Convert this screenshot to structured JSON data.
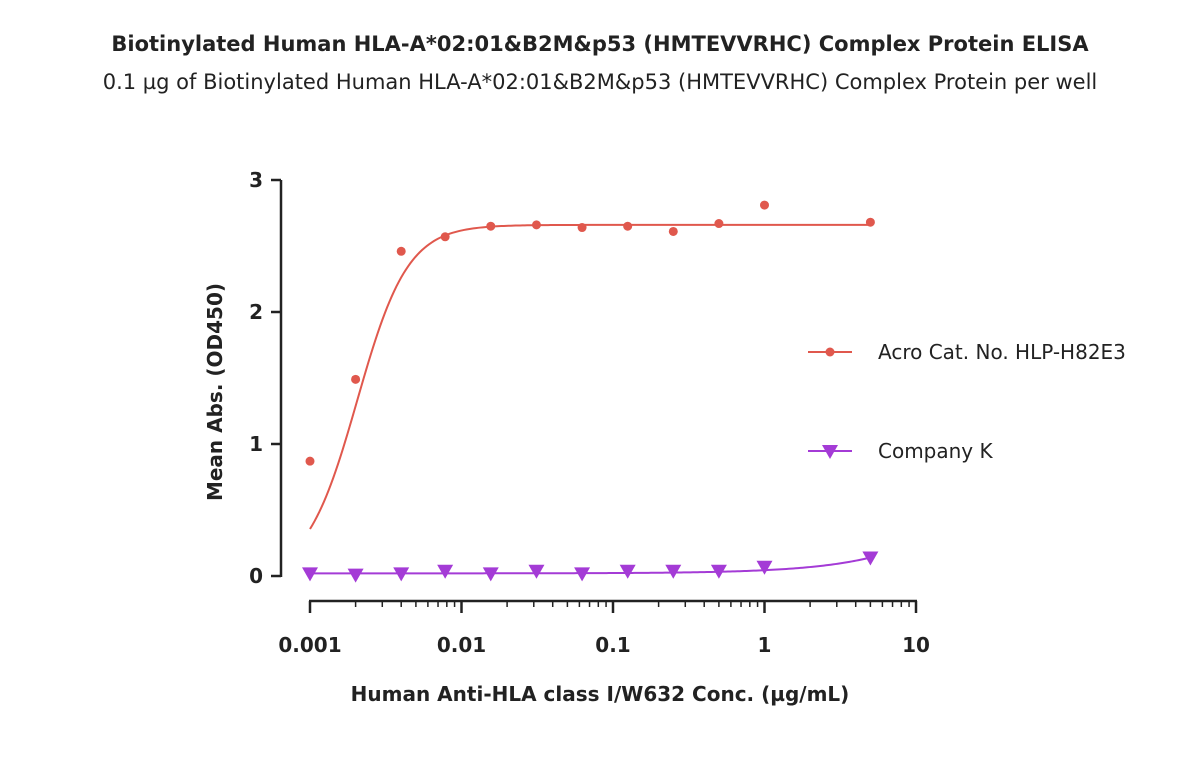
{
  "chart_data": {
    "type": "scatter",
    "title": "Biotinylated Human HLA-A*02:01&B2M&p53 (HMTEVVRHC) Complex Protein ELISA",
    "subtitle": "0.1 µg of Biotinylated Human HLA-A*02:01&B2M&p53 (HMTEVVRHC) Complex Protein per well",
    "xlabel": "Human Anti-HLA class I/W632 Conc. (µg/mL)",
    "ylabel": "Mean Abs. (OD450)",
    "xscale": "log",
    "xlim": [
      0.001,
      10
    ],
    "ylim": [
      0,
      3
    ],
    "xticks": [
      "0.001",
      "0.01",
      "0.1",
      "1",
      "10"
    ],
    "yticks": [
      "0",
      "1",
      "2",
      "3"
    ],
    "grid": false,
    "legend_position": "right",
    "series": [
      {
        "name": "Acro Cat. No. HLP-H82E3",
        "color": "#e0584d",
        "marker": "circle",
        "x": [
          0.001,
          0.002,
          0.004,
          0.0078,
          0.0156,
          0.03125,
          0.0625,
          0.125,
          0.25,
          0.5,
          1,
          5
        ],
        "y": [
          0.87,
          1.49,
          2.46,
          2.57,
          2.65,
          2.66,
          2.64,
          2.65,
          2.61,
          2.67,
          2.81,
          2.68
        ],
        "fit": {
          "bottom": 0.0,
          "top": 2.66,
          "ec50": 0.00205,
          "hill": 2.6
        }
      },
      {
        "name": "Company K",
        "color": "#a43bd6",
        "marker": "triangle-down",
        "x": [
          0.001,
          0.002,
          0.004,
          0.0078,
          0.0156,
          0.03125,
          0.0625,
          0.125,
          0.25,
          0.5,
          1,
          5
        ],
        "y": [
          0.02,
          0.01,
          0.02,
          0.04,
          0.02,
          0.04,
          0.02,
          0.04,
          0.04,
          0.04,
          0.07,
          0.14
        ],
        "fit": {
          "bottom": 0.02,
          "slope": 0.024
        }
      }
    ]
  }
}
